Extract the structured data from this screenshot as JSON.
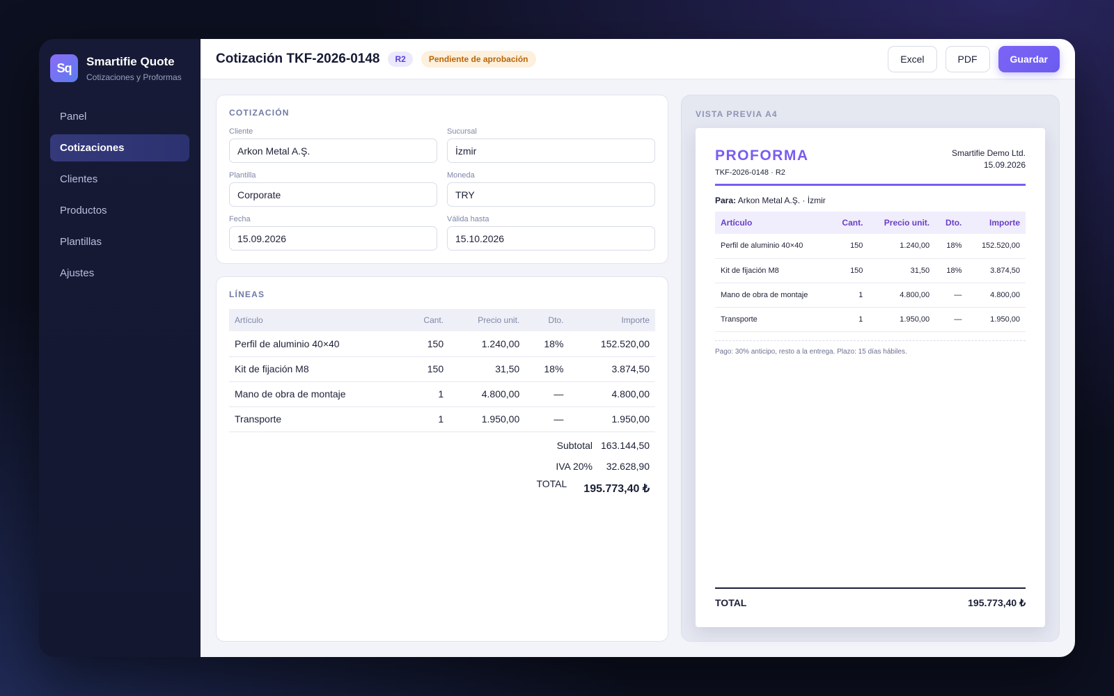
{
  "app": {
    "logo_text": "Sq",
    "name": "Smartifie Quote",
    "subtitle": "Cotizaciones y Proformas"
  },
  "nav": [
    {
      "label": "Panel",
      "active": false
    },
    {
      "label": "Cotizaciones",
      "active": true
    },
    {
      "label": "Clientes",
      "active": false
    },
    {
      "label": "Productos",
      "active": false
    },
    {
      "label": "Plantillas",
      "active": false
    },
    {
      "label": "Ajustes",
      "active": false
    }
  ],
  "header": {
    "title": "Cotización TKF-2026-0148",
    "revision": "R2",
    "status": "Pendiente de aprobación",
    "actions": {
      "excel": "Excel",
      "pdf": "PDF",
      "save": "Guardar"
    }
  },
  "form": {
    "section_title": "COTIZACIÓN",
    "client": {
      "label": "Cliente",
      "value": "Arkon Metal A.Ş."
    },
    "branch": {
      "label": "Sucursal",
      "value": "İzmir"
    },
    "template": {
      "label": "Plantilla",
      "value": "Corporate"
    },
    "currency": {
      "label": "Moneda",
      "value": "TRY"
    },
    "date": {
      "label": "Fecha",
      "value": "15.09.2026"
    },
    "valid_until": {
      "label": "Válida hasta",
      "value": "15.10.2026"
    }
  },
  "lines": {
    "section_title": "LÍNEAS",
    "columns": [
      "Artículo",
      "Cant.",
      "Precio unit.",
      "Dto.",
      "Importe"
    ],
    "rows": [
      [
        "Perfil de aluminio 40×40",
        "150",
        "1.240,00",
        "18%",
        "152.520,00"
      ],
      [
        "Kit de fijación M8",
        "150",
        "31,50",
        "18%",
        "3.874,50"
      ],
      [
        "Mano de obra de montaje",
        "1",
        "4.800,00",
        "—",
        "4.800,00"
      ],
      [
        "Transporte",
        "1",
        "1.950,00",
        "—",
        "1.950,00"
      ]
    ],
    "subtotal_label": "Subtotal",
    "subtotal": "163.144,50",
    "vat_label": "IVA 20%",
    "vat": "32.628,90",
    "total_label": "TOTAL",
    "total": "195.773,40 ₺"
  },
  "preview": {
    "section_title": "VISTA PREVIA A4",
    "doc_title": "PROFORMA",
    "doc_number": "TKF-2026-0148 · R2",
    "company": "Smartifie Demo Ltd.",
    "date": "15.09.2026",
    "to_label": "Para:",
    "to_value": "Arkon Metal A.Ş. · İzmir",
    "note": "Pago: 30% anticipo, resto a la entrega. Plazo: 15 días hábiles.",
    "total_label": "TOTAL",
    "total": "195.773,40 ₺"
  }
}
